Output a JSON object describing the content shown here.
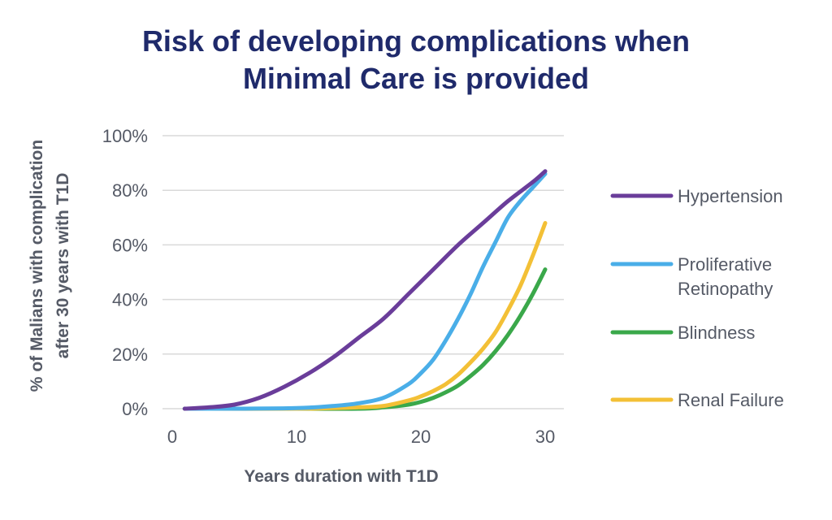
{
  "chart_data": {
    "type": "line",
    "title_lines": [
      "Risk of developing complications when",
      "Minimal Care is provided"
    ],
    "xlabel": "Years duration with T1D",
    "ylabel_lines": [
      "% of Malians with complication",
      "after 30 years with T1D"
    ],
    "xlim": [
      0,
      30
    ],
    "ylim": [
      0,
      100
    ],
    "x_ticks": [
      0,
      10,
      20,
      30
    ],
    "x_tick_labels": [
      "0",
      "10",
      "20",
      "30"
    ],
    "y_ticks": [
      0,
      20,
      40,
      60,
      80,
      100
    ],
    "y_tick_labels": [
      "0%",
      "20%",
      "40%",
      "60%",
      "80%",
      "100%"
    ],
    "grid": true,
    "legend_position": "right",
    "series": [
      {
        "name": "Hypertension",
        "color": "#6a3d9a",
        "x": [
          1,
          3,
          5,
          7,
          9,
          11,
          13,
          15,
          17,
          19,
          21,
          23,
          25,
          27,
          29,
          30
        ],
        "y": [
          0,
          0.5,
          1.5,
          4,
          8,
          13,
          19,
          26,
          33,
          42,
          51,
          60,
          68,
          76,
          83,
          87
        ]
      },
      {
        "name": "Proliferative\nRetinopathy",
        "color": "#4aaee8",
        "x": [
          1,
          5,
          10,
          13,
          15,
          17,
          19,
          20,
          21,
          22,
          23,
          24,
          25,
          26,
          27,
          28,
          29,
          30
        ],
        "y": [
          0,
          0,
          0.2,
          1,
          2,
          4,
          9,
          13,
          18,
          25,
          33,
          42,
          52,
          61,
          70,
          76,
          81,
          86
        ]
      },
      {
        "name": "Blindness",
        "color": "#3aa84a",
        "x": [
          1,
          10,
          15,
          17,
          19,
          20,
          21,
          22,
          23,
          24,
          25,
          26,
          27,
          28,
          29,
          30
        ],
        "y": [
          0,
          0,
          0,
          0.5,
          1.5,
          2.5,
          4,
          6,
          8.5,
          12,
          16,
          21,
          27,
          34,
          42,
          51
        ]
      },
      {
        "name": "Renal Failure",
        "color": "#f3c036",
        "x": [
          1,
          10,
          15,
          17,
          19,
          20,
          21,
          22,
          23,
          24,
          25,
          26,
          27,
          28,
          29,
          30
        ],
        "y": [
          0,
          0,
          0.5,
          1,
          3,
          4.5,
          6.5,
          9,
          12.5,
          17,
          22,
          28,
          36,
          45,
          56,
          68
        ]
      }
    ]
  }
}
